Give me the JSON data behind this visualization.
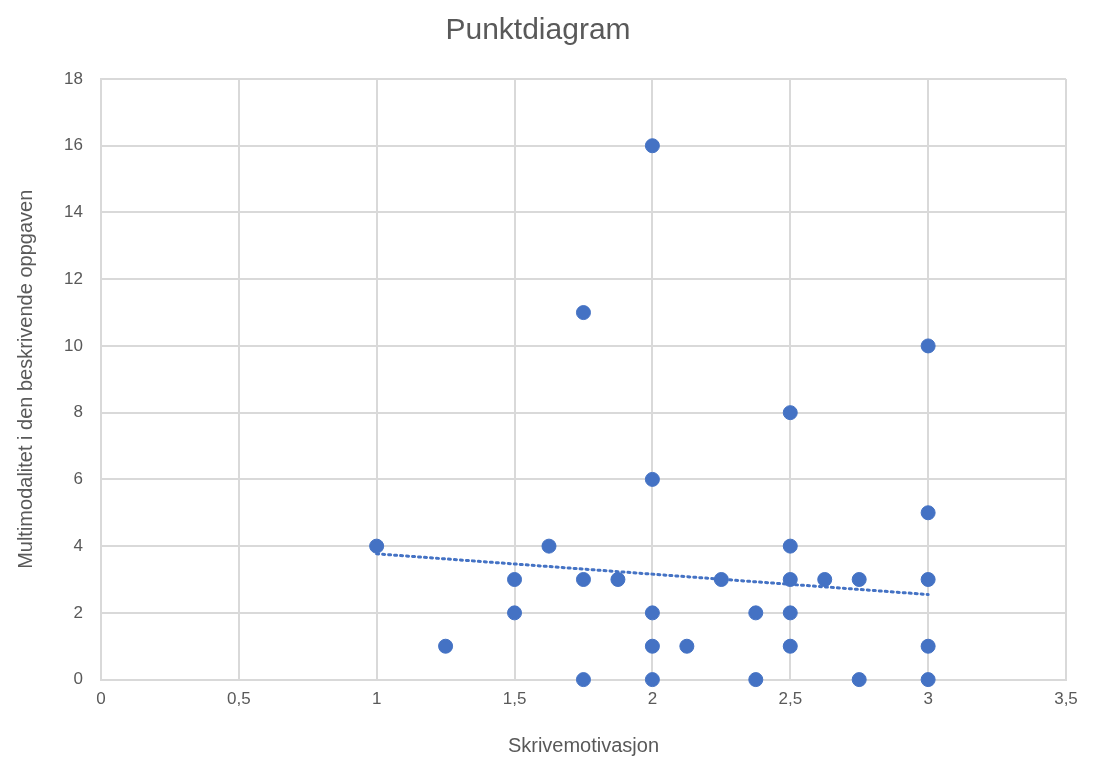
{
  "chart_data": {
    "type": "scatter",
    "title": "Punktdiagram",
    "xlabel": "Skrivemotivasjon",
    "ylabel": "Multimodalitet i den beskrivende oppgaven",
    "xlim": [
      0,
      3.5
    ],
    "xticks": [
      0,
      {
        "value": 0.5,
        "label": "0,5"
      },
      1,
      {
        "value": 1.5,
        "label": "1,5"
      },
      2,
      {
        "value": 2.5,
        "label": "2,5"
      },
      3,
      {
        "value": 3.5,
        "label": "3,5"
      }
    ],
    "ylim": [
      0,
      18
    ],
    "yticks": [
      0,
      2,
      4,
      6,
      8,
      10,
      12,
      14,
      16,
      18
    ],
    "grid": true,
    "legend": false,
    "marker": "circle",
    "series": [
      {
        "type": "scatter",
        "color": "#4472c4",
        "x": [
          1,
          1.25,
          1.5,
          1.5,
          1.625,
          1.75,
          1.75,
          1.75,
          1.875,
          2,
          2,
          2,
          2,
          2,
          2.125,
          2.25,
          2.375,
          2.375,
          2.5,
          2.5,
          2.5,
          2.5,
          2.5,
          2.625,
          2.75,
          2.75,
          3,
          3,
          3,
          3,
          3
        ],
        "values": [
          4,
          1,
          3,
          2,
          4,
          11,
          3,
          0,
          3,
          16,
          6,
          2,
          1,
          0,
          1,
          3,
          2,
          0,
          8,
          4,
          3,
          2,
          1,
          3,
          3,
          0,
          10,
          5,
          3,
          1,
          0
        ]
      },
      {
        "type": "line",
        "color": "#4472c4",
        "line_style": "dotted",
        "marker": "none",
        "x": [
          1,
          3
        ],
        "values": [
          3.77,
          2.55
        ]
      }
    ]
  }
}
